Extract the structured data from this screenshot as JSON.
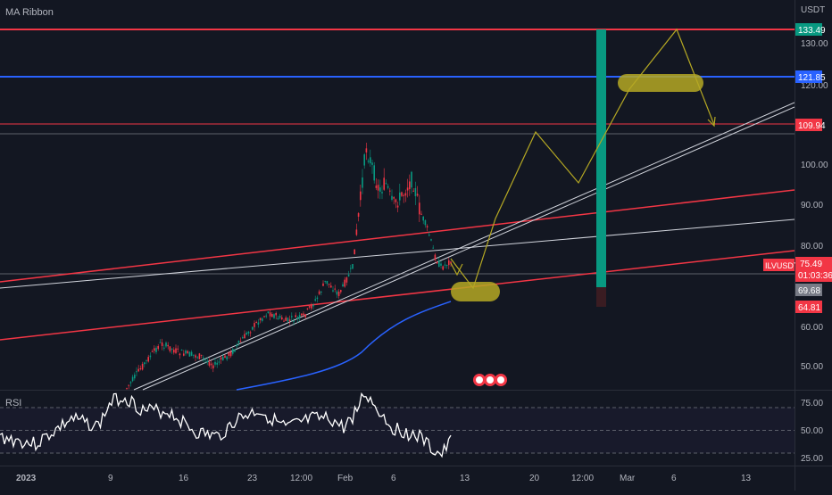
{
  "indicator": {
    "main_title": "MA Ribbon",
    "rsi_title": "RSI"
  },
  "price_axis": {
    "unit": "USDT",
    "ticks": [
      "130.00",
      "120.00",
      "100.00",
      "90.00",
      "80.00",
      "60.00",
      "50.00"
    ]
  },
  "rsi_axis": {
    "ticks": [
      "75.00",
      "50.00",
      "25.00"
    ]
  },
  "time_axis": {
    "ticks": [
      "2023",
      "9",
      "16",
      "23",
      "12:00",
      "Feb",
      "6",
      "13",
      "20",
      "12:00",
      "Mar",
      "6",
      "13"
    ]
  },
  "price_tags": {
    "resistance_top": "133.49",
    "blue_level": "121.85",
    "red_level": "109.94",
    "symbol": "ILVUSDT",
    "last_price": "75.49",
    "countdown": "01:03:36",
    "gray_level": "69.68",
    "support_level": "64.81"
  },
  "colors": {
    "background": "#131722",
    "red_line": "#f23645",
    "blue_line": "#2962ff",
    "green_bar": "#089981",
    "candle_up": "#089981",
    "candle_down": "#f23645",
    "yellow_highlight": "#b5a823",
    "white_line": "#d1d4dc",
    "ma_blue": "#2962ff",
    "rsi_line": "#ffffff"
  },
  "chart_data": {
    "type": "candlestick",
    "symbol": "ILVUSDT",
    "quote": "USDT",
    "levels": {
      "resistance": 133.49,
      "blue": 121.85,
      "red": 109.94,
      "support": 64.81,
      "gray": 69.68
    },
    "last": 75.49,
    "rsi_levels": [
      75,
      50,
      25
    ]
  }
}
